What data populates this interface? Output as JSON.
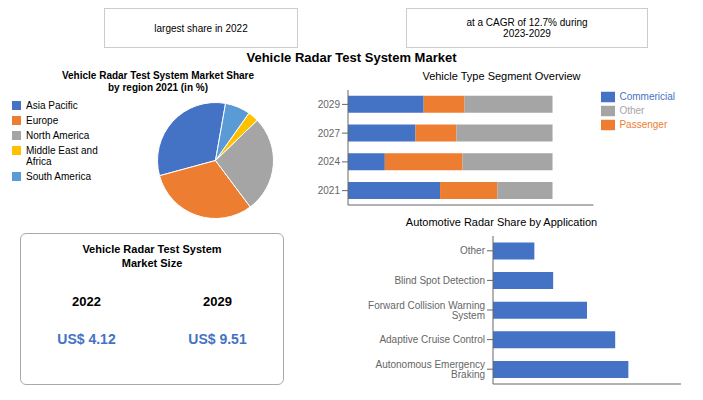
{
  "title": "Vehicle Radar Test System Market",
  "annotations": [
    "largest share in 2022",
    "at a CAGR of 12.7% during\n2023-2029"
  ],
  "chart_data": [
    {
      "type": "pie",
      "title": "Vehicle Radar Test System Market Share\nby region 2021 (in %)",
      "categories": [
        "Asia Pacific",
        "Europe",
        "North America",
        "Middle East and\nAfrica",
        "South America"
      ],
      "values": [
        32,
        31,
        27,
        3,
        7
      ],
      "colors": [
        "#4472c4",
        "#ed7d31",
        "#a5a5a5",
        "#ffc000",
        "#5b9bd5"
      ],
      "legend": "left"
    },
    {
      "type": "bar",
      "title": "Vehicle Type Segment Overview",
      "orientation": "horizontal",
      "stacked": true,
      "categories": [
        "2021",
        "2024",
        "2027",
        "2029"
      ],
      "series": [
        {
          "name": "Commericial",
          "color": "#4472c4",
          "values": [
            45,
            18,
            33,
            37
          ]
        },
        {
          "name": "Passenger",
          "color": "#ed7d31",
          "values": [
            28,
            38,
            20,
            20
          ]
        },
        {
          "name": "Other",
          "color": "#a5a5a5",
          "values": [
            27,
            44,
            47,
            43
          ]
        }
      ],
      "xlim": [
        0,
        120
      ],
      "tick_labels": "y",
      "grid": false,
      "legend": "right"
    },
    {
      "type": "bar",
      "title": "Automotive Radar Share by Application",
      "orientation": "horizontal",
      "categories": [
        "Autonomous Emergency Braking",
        "Adaptive Cruise Control",
        "Forward Collision Warning System",
        "Blind Spot Detection",
        "Other"
      ],
      "values": [
        72,
        65,
        50,
        32,
        22
      ],
      "color": "#4472c4",
      "xlim": [
        0,
        100
      ],
      "tick_labels": "y",
      "grid": false
    },
    {
      "type": "text",
      "title": "Vehicle Radar Test System\nMarket Size",
      "categories": [
        "2022",
        "2029"
      ],
      "annotations": [
        "US$ 4.12",
        "US$ 9.51"
      ],
      "color": "#4472c4"
    }
  ]
}
